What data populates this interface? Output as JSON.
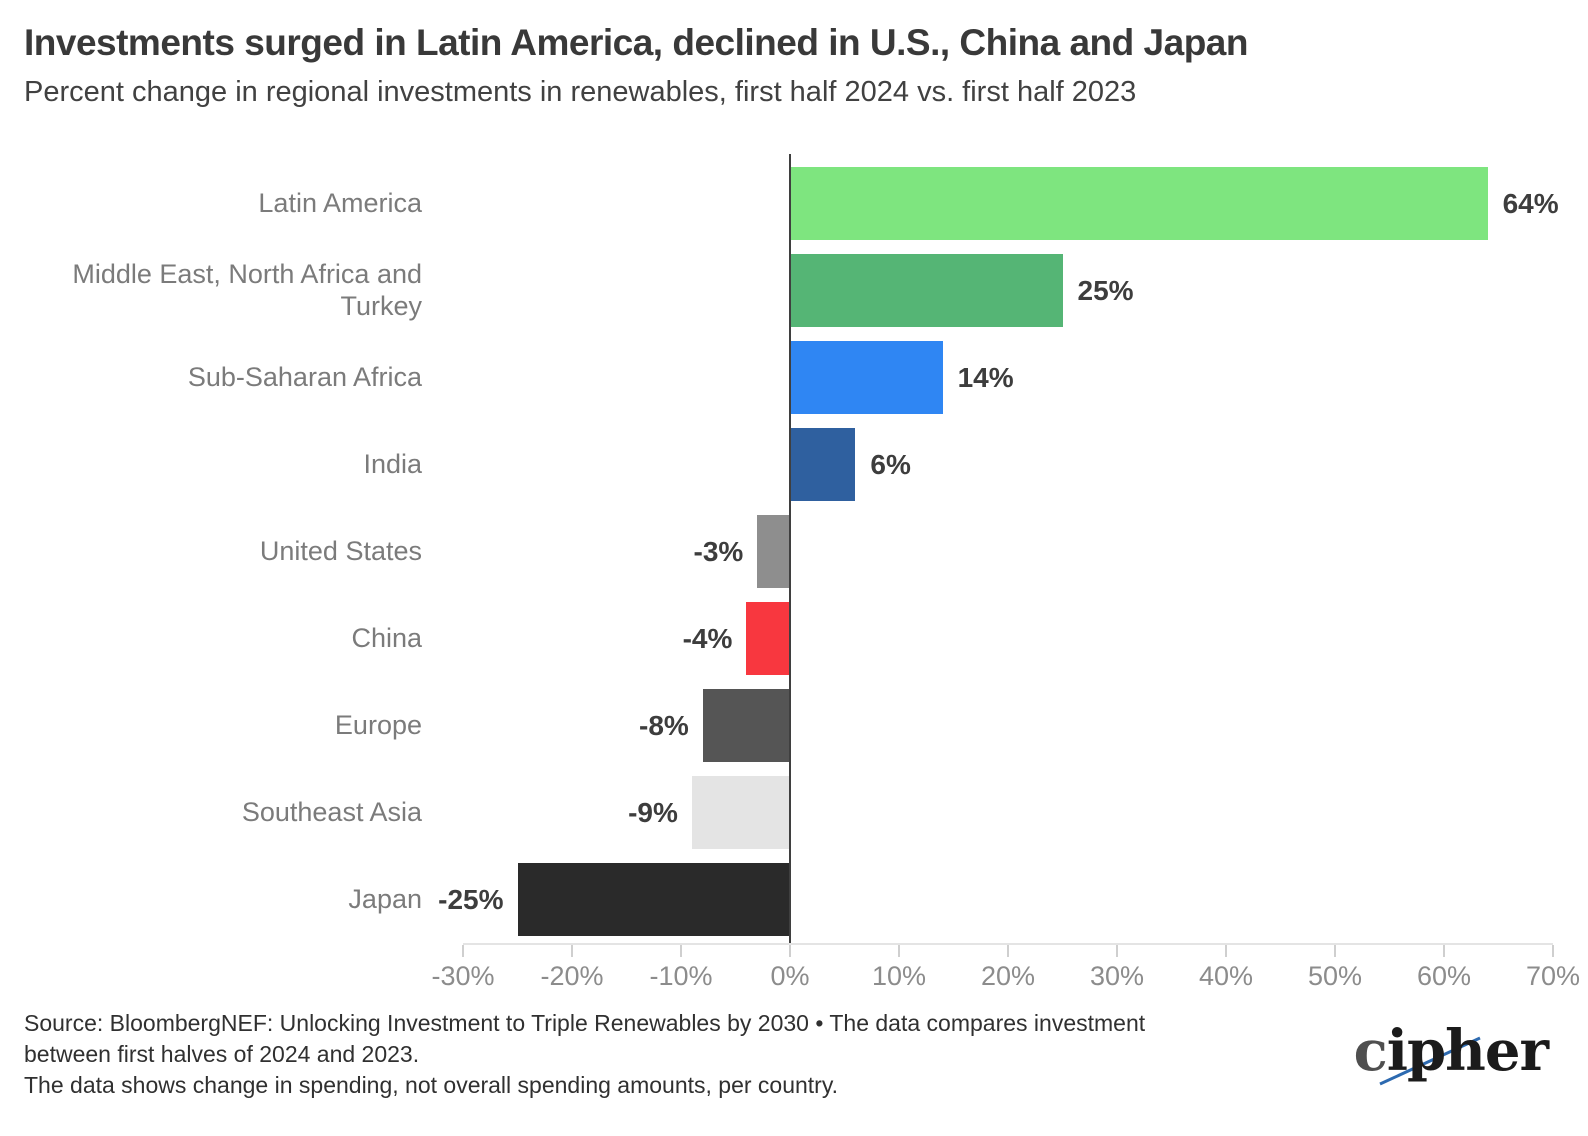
{
  "title": "Investments surged in Latin America, declined in U.S., China and Japan",
  "subtitle": "Percent change in regional investments in renewables, first half 2024 vs. first half 2023",
  "chart_data": {
    "type": "bar",
    "orientation": "horizontal",
    "title": "Investments surged in Latin America, declined in U.S., China and Japan",
    "subtitle": "Percent change in regional investments in renewables, first half 2024 vs. first half 2023",
    "xlabel": "",
    "ylabel": "",
    "xlim": [
      -30,
      70
    ],
    "grid": false,
    "legend": "none",
    "categories": [
      "Latin America",
      "Middle East, North Africa and Turkey",
      "Sub-Saharan Africa",
      "India",
      "United States",
      "China",
      "Europe",
      "Southeast Asia",
      "Japan"
    ],
    "values": [
      64,
      25,
      14,
      6,
      -3,
      -4,
      -8,
      -9,
      -25
    ],
    "bars": [
      {
        "category": "Latin America",
        "value": 64,
        "label": "64%",
        "color": "#7ee57f"
      },
      {
        "category": "Middle East, North Africa and Turkey",
        "value": 25,
        "label": "25%",
        "color": "#55b575"
      },
      {
        "category": "Sub-Saharan Africa",
        "value": 14,
        "label": "14%",
        "color": "#2f86f3"
      },
      {
        "category": "India",
        "value": 6,
        "label": "6%",
        "color": "#2f609f"
      },
      {
        "category": "United States",
        "value": -3,
        "label": "-3%",
        "color": "#8e8e8e"
      },
      {
        "category": "China",
        "value": -4,
        "label": "-4%",
        "color": "#f8373f"
      },
      {
        "category": "Europe",
        "value": -8,
        "label": "-8%",
        "color": "#555555"
      },
      {
        "category": "Southeast Asia",
        "value": -9,
        "label": "-9%",
        "color": "#e4e4e4"
      },
      {
        "category": "Japan",
        "value": -25,
        "label": "-25%",
        "color": "#2a2a2a"
      }
    ],
    "tick_values": [
      -30,
      -20,
      -10,
      0,
      10,
      20,
      30,
      40,
      50,
      60,
      70
    ],
    "tick_labels": [
      "-30%",
      "-20%",
      "-10%",
      "0%",
      "10%",
      "20%",
      "30%",
      "40%",
      "50%",
      "60%",
      "70%"
    ]
  },
  "footer": {
    "lines": [
      "Source: BloombergNEF: Unlocking Investment to Triple Renewables by 2030 • The data compares investment",
      "between first halves of 2024 and 2023.",
      "The data shows change in spending, not overall spending amounts, per country."
    ]
  },
  "logo": {
    "text_first": "c",
    "text_rest": "ipher",
    "slash_color": "#2d6ab0"
  }
}
